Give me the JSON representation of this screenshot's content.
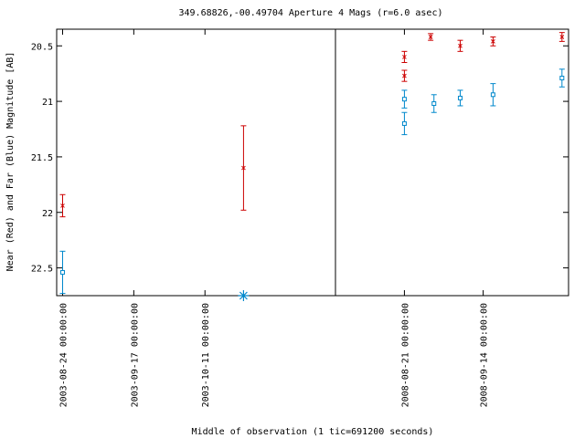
{
  "chart_data": {
    "type": "scatter",
    "title": "349.68826,-00.49704   Aperture 4 Mags (r=6.0 asec)",
    "xlabel": "Middle of observation (1 tic=691200 seconds)",
    "ylabel": "Near (Red) and Far (Blue) Magnitude [AB]",
    "y_inverted": true,
    "ylim": [
      22.75,
      20.35
    ],
    "yticks": [
      20.5,
      21,
      21.5,
      22,
      22.5
    ],
    "ytick_labels": [
      "20.5",
      "21",
      "21.5",
      "22",
      "22.5"
    ],
    "grid": false,
    "panels": [
      {
        "xlim": [
          "2003-08-22",
          "2003-11-24"
        ],
        "xticks": [
          "2003-08-24 00:00:00",
          "2003-09-17 00:00:00",
          "2003-10-11 00:00:00"
        ]
      },
      {
        "xlim": [
          "2008-07-31",
          "2008-10-10"
        ],
        "xticks": [
          "2008-08-21 00:00:00",
          "2008-09-14 00:00:00"
        ]
      }
    ],
    "series": [
      {
        "color": "#cc0000",
        "marker": "x",
        "points": [
          {
            "x": "2003-08-24",
            "y": 21.94,
            "err": 0.1
          },
          {
            "x": "2003-10-24",
            "y": 21.6,
            "err": 0.38
          },
          {
            "x": "2008-08-21",
            "y": 20.6,
            "err": 0.05
          },
          {
            "x": "2008-08-21",
            "y": 20.77,
            "err": 0.05
          },
          {
            "x": "2008-08-29",
            "y": 20.42,
            "err": 0.03
          },
          {
            "x": "2008-09-07",
            "y": 20.5,
            "err": 0.05
          },
          {
            "x": "2008-09-17",
            "y": 20.46,
            "err": 0.04
          },
          {
            "x": "2008-10-08",
            "y": 20.42,
            "err": 0.04
          }
        ]
      },
      {
        "color": "#0088cc",
        "marker": "square",
        "points": [
          {
            "x": "2003-08-24",
            "y": 22.54,
            "err": 0.19
          },
          {
            "x": "2008-08-21",
            "y": 20.98,
            "err": 0.08
          },
          {
            "x": "2008-08-21",
            "y": 21.2,
            "err": 0.1
          },
          {
            "x": "2008-08-30",
            "y": 21.02,
            "err": 0.08
          },
          {
            "x": "2008-09-07",
            "y": 20.97,
            "err": 0.07
          },
          {
            "x": "2008-09-17",
            "y": 20.94,
            "err": 0.1
          },
          {
            "x": "2008-10-08",
            "y": 20.79,
            "err": 0.08
          }
        ]
      }
    ],
    "limit_markers": [
      {
        "x": "2003-10-24",
        "y": 22.75,
        "color": "#0088cc",
        "marker": "asterisk"
      }
    ]
  }
}
